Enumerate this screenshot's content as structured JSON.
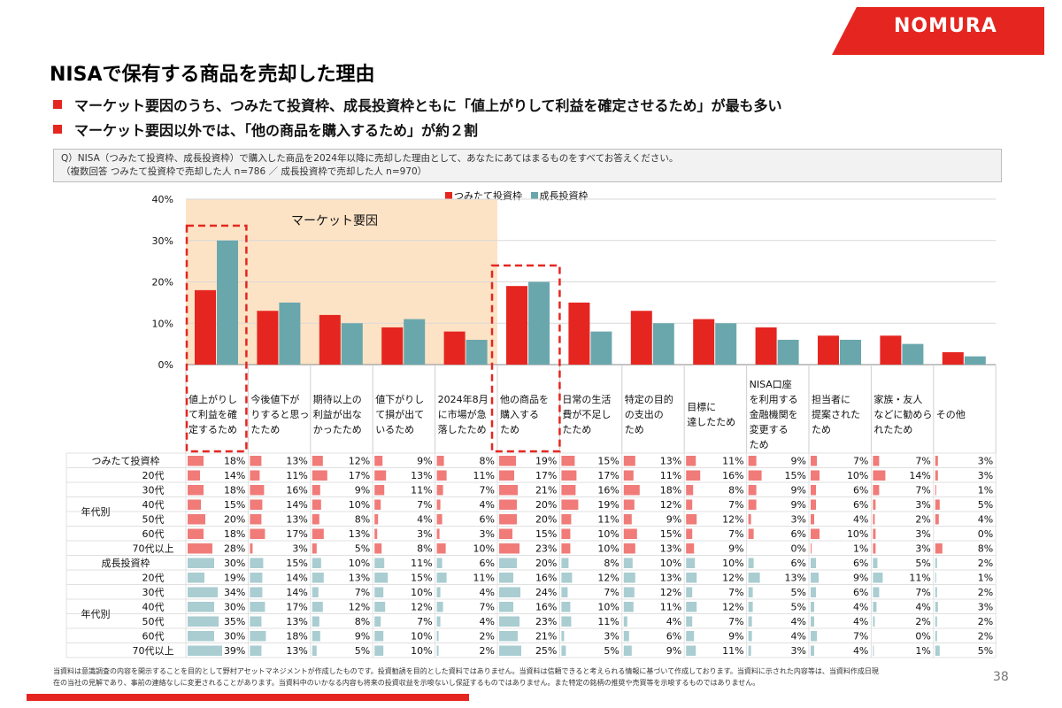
{
  "brand": {
    "logo": "NOMURA",
    "accent": "#e52620",
    "teal": "#6aa7ad"
  },
  "title": "NISAで保有する商品を売却した理由",
  "bullets": [
    "マーケット要因のうち、つみたて投資枠、成長投資枠ともに「値上がりして利益を確定させるため」が最も多い",
    "マーケット要因以外では、「他の商品を購入するため」が約２割"
  ],
  "question": {
    "line1": "Q）NISA（つみたて投資枠、成長投資枠）で購入した商品を2024年以降に売却した理由として、あなたにあてはまるものをすべてお答えください。",
    "line2": "（複数回答 つみたて投資枠で売却した人 n=786 ／ 成長投資枠で売却した人 n=970）"
  },
  "chart_data": {
    "type": "bar",
    "ylim": [
      0,
      40
    ],
    "yticks": [
      "40%",
      "30%",
      "20%",
      "10%",
      "0%"
    ],
    "market_label": "マーケット要因",
    "categories": [
      [
        "値上がりし",
        "て利益を確",
        "定するため"
      ],
      [
        "今後値下が",
        "りすると思っ",
        "たため"
      ],
      [
        "期待以上の",
        "利益が出な",
        "かったため"
      ],
      [
        "値下がりし",
        "て損が出て",
        "いるため"
      ],
      [
        "2024年8月",
        "に市場が急",
        "落したため"
      ],
      [
        "他の商品を",
        "購入する",
        "ため"
      ],
      [
        "日常の生活",
        "費が不足し",
        "たため"
      ],
      [
        "特定の目的",
        "の支出の",
        "ため"
      ],
      [
        "目標に",
        "達したため"
      ],
      [
        "NISA口座",
        "を利用する",
        "金融機関を",
        "変更する",
        "ため"
      ],
      [
        "担当者に",
        "提案された",
        "ため"
      ],
      [
        "家族・友人",
        "などに勧めら",
        "れたため"
      ],
      [
        "その他"
      ]
    ],
    "series": [
      {
        "name": "つみたて投資枠",
        "color": "#e52620",
        "values": [
          18,
          13,
          12,
          9,
          8,
          19,
          15,
          13,
          11,
          9,
          7,
          7,
          3
        ]
      },
      {
        "name": "成長投資枠",
        "color": "#6aa7ad",
        "values": [
          30,
          15,
          10,
          11,
          6,
          20,
          8,
          10,
          10,
          6,
          6,
          5,
          2
        ]
      }
    ],
    "table": {
      "age_label": "年代別",
      "groups": [
        {
          "header": "つみたて投資枠",
          "color": "#f07b78",
          "total": [
            18,
            13,
            12,
            9,
            8,
            19,
            15,
            13,
            11,
            9,
            7,
            7,
            3
          ],
          "rows": [
            {
              "label": "20代",
              "values": [
                14,
                11,
                17,
                13,
                11,
                17,
                17,
                11,
                16,
                15,
                10,
                14,
                3
              ]
            },
            {
              "label": "30代",
              "values": [
                18,
                16,
                9,
                11,
                7,
                21,
                16,
                18,
                8,
                9,
                6,
                7,
                1
              ]
            },
            {
              "label": "40代",
              "values": [
                15,
                14,
                10,
                7,
                4,
                20,
                19,
                12,
                7,
                9,
                6,
                3,
                5
              ]
            },
            {
              "label": "50代",
              "values": [
                20,
                13,
                8,
                4,
                6,
                20,
                11,
                9,
                12,
                3,
                4,
                2,
                4
              ]
            },
            {
              "label": "60代",
              "values": [
                18,
                17,
                13,
                3,
                3,
                15,
                10,
                15,
                7,
                6,
                10,
                3,
                0
              ]
            },
            {
              "label": "70代以上",
              "values": [
                28,
                3,
                5,
                8,
                10,
                23,
                10,
                13,
                9,
                0,
                1,
                3,
                8
              ]
            }
          ]
        },
        {
          "header": "成長投資枠",
          "color": "#a9cdd1",
          "total": [
            30,
            15,
            10,
            11,
            6,
            20,
            8,
            10,
            10,
            6,
            6,
            5,
            2
          ],
          "rows": [
            {
              "label": "20代",
              "values": [
                19,
                14,
                13,
                15,
                11,
                16,
                12,
                13,
                12,
                13,
                9,
                11,
                1
              ]
            },
            {
              "label": "30代",
              "values": [
                34,
                14,
                7,
                10,
                4,
                24,
                7,
                12,
                7,
                5,
                6,
                7,
                2
              ]
            },
            {
              "label": "40代",
              "values": [
                30,
                17,
                12,
                12,
                7,
                16,
                10,
                11,
                12,
                5,
                4,
                4,
                3
              ]
            },
            {
              "label": "50代",
              "values": [
                35,
                13,
                8,
                7,
                4,
                23,
                11,
                4,
                7,
                4,
                4,
                2,
                2
              ]
            },
            {
              "label": "60代",
              "values": [
                30,
                18,
                9,
                10,
                2,
                21,
                3,
                6,
                9,
                4,
                7,
                0,
                2
              ]
            },
            {
              "label": "70代以上",
              "values": [
                39,
                13,
                5,
                10,
                2,
                25,
                5,
                9,
                11,
                3,
                4,
                1,
                5
              ]
            }
          ]
        }
      ]
    }
  },
  "footer": {
    "line1": "当資料は意識調査の内容を開示することを目的として野村アセットマネジメントが作成したものです。投資勧誘を目的とした資料ではありません。当資料は信頼できると考えられる情報に基づいて作成しております。当資料に示された内容等は、当資料作成日現",
    "line2": "在の当社の見解であり、事前の連絡なしに変更されることがあります。当資料中のいかなる内容も将来の投資収益を示唆ないし保証するものではありません。また特定の銘柄の推奨や売買等を示唆するものではありません。"
  },
  "page_number": "38"
}
